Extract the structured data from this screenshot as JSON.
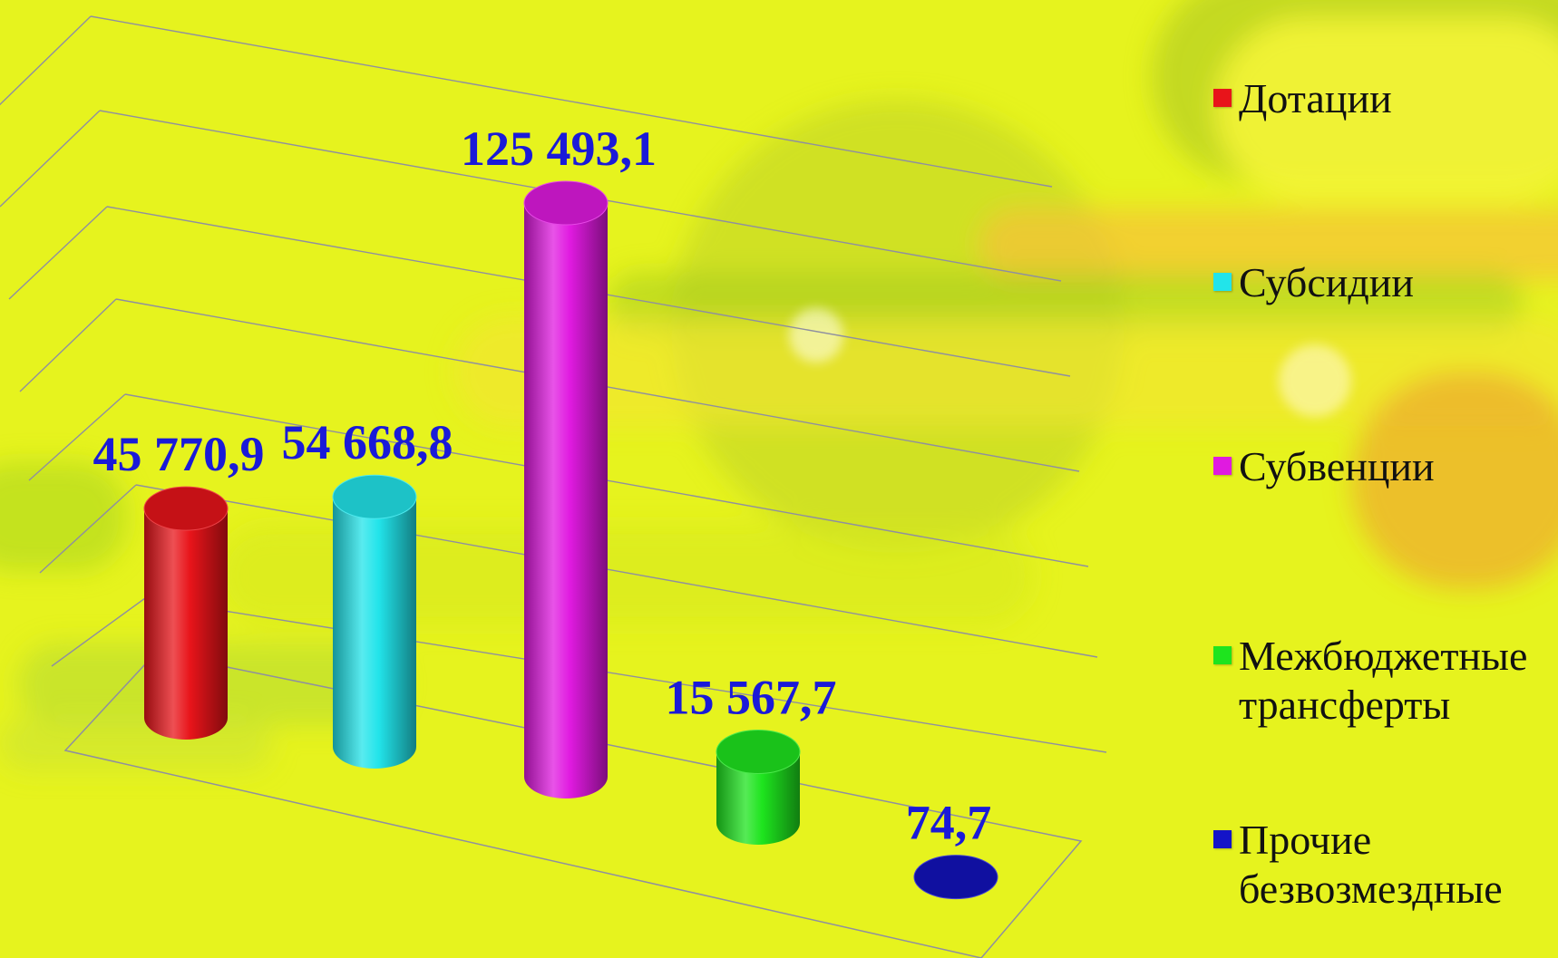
{
  "chart_data": {
    "type": "bar",
    "title": "",
    "xlabel": "",
    "ylabel": "",
    "ylim": [
      0,
      140000
    ],
    "grid": true,
    "legend_position": "right",
    "label_color": "#1a1ad8",
    "categories": [
      "Дотации",
      "Субсидии",
      "Субвенции",
      "Межбюджетные трансферты",
      "Прочие безвозмездные"
    ],
    "values": [
      45770.9,
      54668.8,
      125493.1,
      15567.7,
      74.7
    ],
    "value_labels": [
      "45 770,9",
      "54 668,8",
      "125 493,1",
      "15 567,7",
      "74,7"
    ],
    "colors": [
      "#e8141a",
      "#22e4ea",
      "#e01ae0",
      "#1ee41e",
      "#1414c8"
    ],
    "legend": [
      {
        "lines": [
          "Дотации"
        ],
        "color": "#e8141a",
        "icon": "red-square-marker"
      },
      {
        "lines": [
          "Субсидии"
        ],
        "color": "#22e4ea",
        "icon": "cyan-square-marker"
      },
      {
        "lines": [
          "Субвенции"
        ],
        "color": "#e01ae0",
        "icon": "magenta-square-marker"
      },
      {
        "lines": [
          "Межбюджетные",
          "трансферты"
        ],
        "color": "#1ee41e",
        "icon": "green-square-marker"
      },
      {
        "lines": [
          "Прочие",
          "безвозмездные"
        ],
        "color": "#1414c8",
        "icon": "blue-square-marker"
      }
    ]
  }
}
